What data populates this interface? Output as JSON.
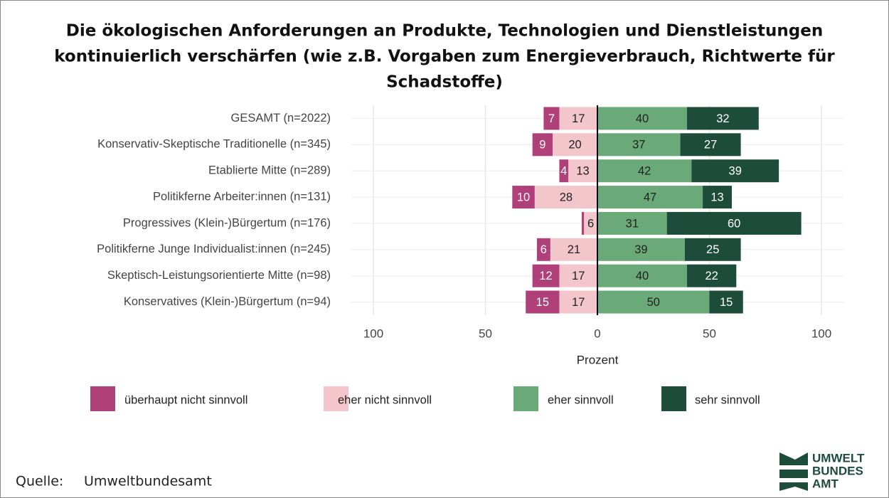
{
  "chart_data": {
    "type": "diverging_bar",
    "title": [
      "Die ökologischen Anforderungen an Produkte, Technologien und Dienstleistungen",
      "kontinuierlich verschärfen (wie z.B. Vorgaben zum Energieverbrauch, Richtwerte für",
      "Schadstoffe)"
    ],
    "categories": [
      "GESAMT (n=2022)",
      "Konservativ-Skeptische Traditionelle (n=345)",
      "Etablierte Mitte (n=289)",
      "Politikferne Arbeiter:innen (n=131)",
      "Progressives (Klein-)Bürgertum (n=176)",
      "Politikferne Junge Individualist:innen (n=245)",
      "Skeptisch-Leistungsorientierte Mitte (n=98)",
      "Konservatives (Klein-)Bürgertum (n=94)"
    ],
    "series": [
      {
        "name": "überhaupt nicht sinnvoll",
        "color": "#b0407a",
        "values": [
          -7,
          -9,
          -4,
          -10,
          -1,
          -6,
          -12,
          -15
        ],
        "value_labels": [
          "7",
          "9",
          "4",
          "10",
          null,
          "6",
          "12",
          "15"
        ]
      },
      {
        "name": "eher nicht sinnvoll",
        "color": "#f3c6cc",
        "values": [
          -17,
          -20,
          -13,
          -28,
          -6,
          -21,
          -17,
          -17
        ],
        "value_labels": [
          "17",
          "20",
          "13",
          "28",
          "6",
          "21",
          "17",
          "17"
        ]
      },
      {
        "name": "eher sinnvoll",
        "color": "#6aaa78",
        "values": [
          40,
          37,
          42,
          47,
          31,
          39,
          40,
          50
        ],
        "value_labels": [
          "40",
          "37",
          "42",
          "47",
          "31",
          "39",
          "40",
          "50"
        ]
      },
      {
        "name": "sehr sinnvoll",
        "color": "#1d4d3a",
        "values": [
          32,
          27,
          39,
          13,
          60,
          25,
          22,
          15
        ],
        "value_labels": [
          "32",
          "27",
          "39",
          "13",
          "60",
          "25",
          "22",
          "15"
        ]
      }
    ],
    "xlim": [
      -110,
      110
    ],
    "xticks": [
      {
        "value": -100,
        "label": "100"
      },
      {
        "value": -50,
        "label": "50"
      },
      0,
      50,
      100
    ],
    "xlabel": "Prozent",
    "grid": true,
    "legend": "bottom",
    "source_label": "Quelle:",
    "source": "Umweltbundesamt",
    "logo": [
      "UMWELT",
      "BUNDES",
      "AMT"
    ]
  }
}
